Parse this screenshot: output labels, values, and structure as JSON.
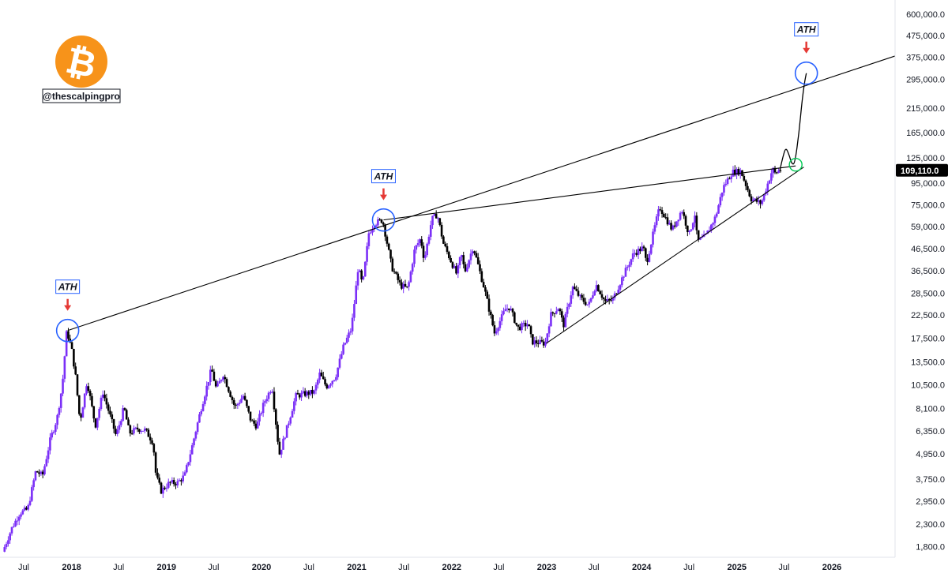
{
  "brand": {
    "logo_icon": "bitcoin-icon",
    "logo_glyph": "₿",
    "logo_color": "#f7931a",
    "handle": "@thescalpingpro"
  },
  "colors": {
    "bull": "#7b2ff7",
    "bear": "#000000",
    "trendline": "#000000",
    "marker_circle": "#2962ff",
    "target_circle": "#00c853",
    "arrow": "#e53935",
    "price_tag_bg": "#000000"
  },
  "current_price_label": "109,110.0",
  "chart_data": {
    "type": "candlestick",
    "title": "",
    "xlabel": "",
    "ylabel": "",
    "y_scale": "log",
    "ylim": [
      1600,
      700000
    ],
    "xlim": [
      "2017-04-01",
      "2026-09-01"
    ],
    "grid": false,
    "y_ticks": [
      600000,
      475000,
      375000,
      295000,
      215000,
      165000,
      125000,
      95000,
      75000,
      59000,
      46500,
      36500,
      28500,
      22500,
      17500,
      13500,
      10500,
      8100,
      6350,
      4950,
      3750,
      2950,
      2300,
      1800
    ],
    "y_tick_labels": [
      "600,000.0",
      "475,000.0",
      "375,000.0",
      "295,000.0",
      "215,000.0",
      "165,000.0",
      "125,000.0",
      "95,000.0",
      "75,000.0",
      "59,000.0",
      "46,500.0",
      "36,500.0",
      "28,500.0",
      "22,500.0",
      "17,500.0",
      "13,500.0",
      "10,500.0",
      "8,100.0",
      "6,350.0",
      "4,950.0",
      "3,750.0",
      "2,950.0",
      "2,300.0",
      "1,800.0"
    ],
    "x_ticks": [
      {
        "date": "2017-07-01",
        "label": "Jul",
        "bold": false
      },
      {
        "date": "2018-01-01",
        "label": "2018",
        "bold": true
      },
      {
        "date": "2018-07-01",
        "label": "Jul",
        "bold": false
      },
      {
        "date": "2019-01-01",
        "label": "2019",
        "bold": true
      },
      {
        "date": "2019-07-01",
        "label": "Jul",
        "bold": false
      },
      {
        "date": "2020-01-01",
        "label": "2020",
        "bold": true
      },
      {
        "date": "2020-07-01",
        "label": "Jul",
        "bold": false
      },
      {
        "date": "2021-01-01",
        "label": "2021",
        "bold": true
      },
      {
        "date": "2021-07-01",
        "label": "Jul",
        "bold": false
      },
      {
        "date": "2022-01-01",
        "label": "2022",
        "bold": true
      },
      {
        "date": "2022-07-01",
        "label": "Jul",
        "bold": false
      },
      {
        "date": "2023-01-01",
        "label": "2023",
        "bold": true
      },
      {
        "date": "2023-07-01",
        "label": "Jul",
        "bold": false
      },
      {
        "date": "2024-01-01",
        "label": "2024",
        "bold": true
      },
      {
        "date": "2024-07-01",
        "label": "Jul",
        "bold": false
      },
      {
        "date": "2025-01-01",
        "label": "2025",
        "bold": true
      },
      {
        "date": "2025-07-01",
        "label": "Jul",
        "bold": false
      },
      {
        "date": "2026-01-01",
        "label": "2026",
        "bold": true
      }
    ],
    "price_path": [
      [
        "2017-04-15",
        1700
      ],
      [
        "2017-05-20",
        2200
      ],
      [
        "2017-06-20",
        2600
      ],
      [
        "2017-07-20",
        2700
      ],
      [
        "2017-08-20",
        4100
      ],
      [
        "2017-09-15",
        3900
      ],
      [
        "2017-10-15",
        5800
      ],
      [
        "2017-11-10",
        7300
      ],
      [
        "2017-11-30",
        10500
      ],
      [
        "2017-12-17",
        19000
      ],
      [
        "2018-01-05",
        15500
      ],
      [
        "2018-01-20",
        11500
      ],
      [
        "2018-02-06",
        7000
      ],
      [
        "2018-03-05",
        11000
      ],
      [
        "2018-04-06",
        6700
      ],
      [
        "2018-05-05",
        9700
      ],
      [
        "2018-06-25",
        6000
      ],
      [
        "2018-07-25",
        8200
      ],
      [
        "2018-08-15",
        6200
      ],
      [
        "2018-09-15",
        6500
      ],
      [
        "2018-10-15",
        6400
      ],
      [
        "2018-11-14",
        5600
      ],
      [
        "2018-11-25",
        3900
      ],
      [
        "2018-12-15",
        3300
      ],
      [
        "2019-01-15",
        3600
      ],
      [
        "2019-02-15",
        3600
      ],
      [
        "2019-03-15",
        3900
      ],
      [
        "2019-04-10",
        5200
      ],
      [
        "2019-05-15",
        7900
      ],
      [
        "2019-06-26",
        12500
      ],
      [
        "2019-07-15",
        10000
      ],
      [
        "2019-08-10",
        11800
      ],
      [
        "2019-09-25",
        8200
      ],
      [
        "2019-10-26",
        9300
      ],
      [
        "2019-11-25",
        7100
      ],
      [
        "2019-12-17",
        6700
      ],
      [
        "2020-01-15",
        8700
      ],
      [
        "2020-02-14",
        10300
      ],
      [
        "2020-03-13",
        4900
      ],
      [
        "2020-04-15",
        6800
      ],
      [
        "2020-05-15",
        9300
      ],
      [
        "2020-06-15",
        9500
      ],
      [
        "2020-07-25",
        9700
      ],
      [
        "2020-08-15",
        11800
      ],
      [
        "2020-09-10",
        10300
      ],
      [
        "2020-10-15",
        11500
      ],
      [
        "2020-11-15",
        16000
      ],
      [
        "2020-12-15",
        19400
      ],
      [
        "2020-12-31",
        29000
      ],
      [
        "2021-01-10",
        38000
      ],
      [
        "2021-01-27",
        31000
      ],
      [
        "2021-02-20",
        55000
      ],
      [
        "2021-03-13",
        61000
      ],
      [
        "2021-04-14",
        63500
      ],
      [
        "2021-05-19",
        38000
      ],
      [
        "2021-06-22",
        31000
      ],
      [
        "2021-07-20",
        30000
      ],
      [
        "2021-08-15",
        46000
      ],
      [
        "2021-09-07",
        52000
      ],
      [
        "2021-09-21",
        41000
      ],
      [
        "2021-10-20",
        64000
      ],
      [
        "2021-11-10",
        67500
      ],
      [
        "2021-12-04",
        49000
      ],
      [
        "2022-01-24",
        35000
      ],
      [
        "2022-02-10",
        44000
      ],
      [
        "2022-02-24",
        36000
      ],
      [
        "2022-03-28",
        47500
      ],
      [
        "2022-05-10",
        30000
      ],
      [
        "2022-06-18",
        18500
      ],
      [
        "2022-07-30",
        24000
      ],
      [
        "2022-08-15",
        24500
      ],
      [
        "2022-09-15",
        19500
      ],
      [
        "2022-10-25",
        20500
      ],
      [
        "2022-11-09",
        16800
      ],
      [
        "2022-12-30",
        16500
      ],
      [
        "2023-01-20",
        22500
      ],
      [
        "2023-02-20",
        24500
      ],
      [
        "2023-03-10",
        20000
      ],
      [
        "2023-04-14",
        30500
      ],
      [
        "2023-05-15",
        27000
      ],
      [
        "2023-06-15",
        25000
      ],
      [
        "2023-07-13",
        31500
      ],
      [
        "2023-08-17",
        26000
      ],
      [
        "2023-09-15",
        26500
      ],
      [
        "2023-10-23",
        34000
      ],
      [
        "2023-12-05",
        44000
      ],
      [
        "2024-01-11",
        47000
      ],
      [
        "2024-01-23",
        39500
      ],
      [
        "2024-02-28",
        62000
      ],
      [
        "2024-03-14",
        73000
      ],
      [
        "2024-05-01",
        57000
      ],
      [
        "2024-06-07",
        71000
      ],
      [
        "2024-07-05",
        54000
      ],
      [
        "2024-07-29",
        69000
      ],
      [
        "2024-08-05",
        50000
      ],
      [
        "2024-09-06",
        53000
      ],
      [
        "2024-10-15",
        66000
      ],
      [
        "2024-11-12",
        90000
      ],
      [
        "2024-12-17",
        107000
      ],
      [
        "2025-01-20",
        108000
      ],
      [
        "2025-02-28",
        80000
      ],
      [
        "2025-04-08",
        76000
      ],
      [
        "2025-05-22",
        111000
      ],
      [
        "2025-06-01",
        105000
      ],
      [
        "2025-06-15",
        109110
      ]
    ],
    "projection_path": [
      [
        "2025-06-15",
        109110
      ],
      [
        "2025-06-28",
        128000
      ],
      [
        "2025-07-08",
        140000
      ],
      [
        "2025-07-20",
        130000
      ],
      [
        "2025-08-01",
        116000
      ],
      [
        "2025-08-12",
        118000
      ],
      [
        "2025-08-28",
        165000
      ],
      [
        "2025-09-08",
        230000
      ],
      [
        "2025-09-18",
        285000
      ],
      [
        "2025-09-25",
        315000
      ]
    ],
    "trendlines": [
      {
        "name": "upper-resistance",
        "from": [
          "2017-12-17",
          19000
        ],
        "to": [
          "2026-09-01",
          380000
        ]
      },
      {
        "name": "ath-connector",
        "from": [
          "2021-04-14",
          63500
        ],
        "to": [
          "2025-08-15",
          114500
        ]
      },
      {
        "name": "rising-support",
        "from": [
          "2022-12-30",
          16500
        ],
        "to": [
          "2025-09-15",
          113000
        ]
      }
    ],
    "annotations": [
      {
        "label": "ATH",
        "date": "2017-12-17",
        "price": 19000,
        "marker": "circle"
      },
      {
        "label": "ATH",
        "date": "2021-04-14",
        "price": 63500,
        "marker": "circle"
      },
      {
        "label": "ATH",
        "date": "2025-09-25",
        "price": 315000,
        "marker": "circle"
      }
    ],
    "target_marker": {
      "date": "2025-08-15",
      "price": 116000
    }
  }
}
